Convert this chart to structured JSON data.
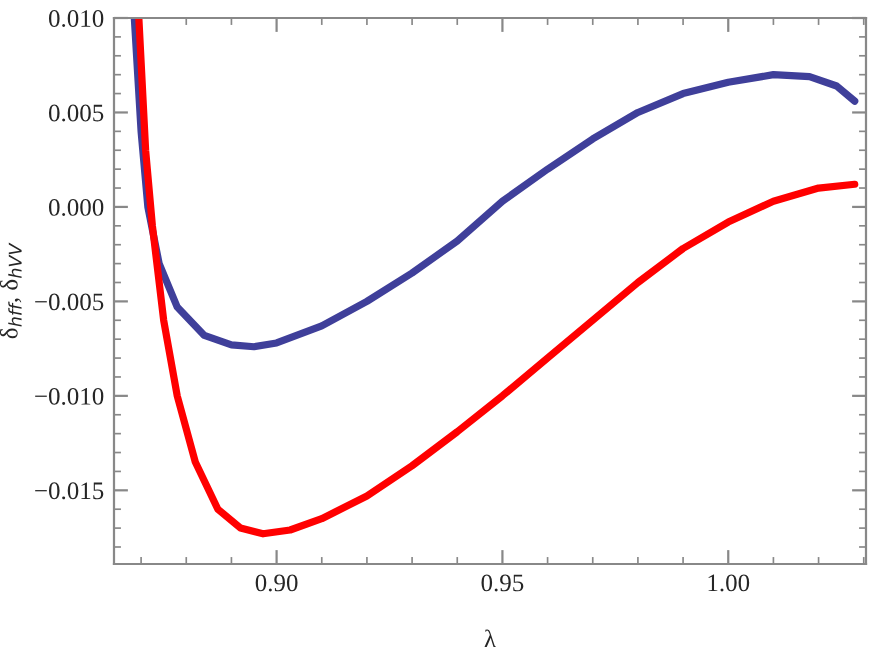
{
  "chart_data": {
    "type": "line",
    "xlabel": "λ",
    "ylabel": "δ$_{hff}$, δ$_{hVV}$",
    "xlim": [
      0.864,
      1.0305
    ],
    "ylim": [
      -0.0189,
      0.01
    ],
    "xticks": [
      {
        "value": 0.9,
        "label": "0.90"
      },
      {
        "value": 0.95,
        "label": "0.95"
      },
      {
        "value": 1.0,
        "label": "1.00"
      }
    ],
    "yticks": [
      {
        "value": -0.015,
        "label": "−0.015"
      },
      {
        "value": -0.01,
        "label": "−0.010"
      },
      {
        "value": -0.005,
        "label": "−0.005"
      },
      {
        "value": 0.0,
        "label": "0.000"
      },
      {
        "value": 0.005,
        "label": "0.005"
      },
      {
        "value": 0.01,
        "label": "0.010"
      }
    ],
    "grid": false,
    "line_style": "solid",
    "marker": "none",
    "series": [
      {
        "color": "#3f3f9a",
        "x": [
          0.8685,
          0.87,
          0.8715,
          0.874,
          0.878,
          0.884,
          0.89,
          0.895,
          0.9,
          0.91,
          0.92,
          0.93,
          0.94,
          0.95,
          0.96,
          0.97,
          0.98,
          0.99,
          1.0,
          1.01,
          1.018,
          1.024,
          1.028
        ],
        "values": [
          0.01,
          0.004,
          0.0,
          -0.003,
          -0.0053,
          -0.0068,
          -0.0073,
          -0.0074,
          -0.0072,
          -0.0063,
          -0.005,
          -0.0035,
          -0.0018,
          0.0003,
          0.002,
          0.0036,
          0.005,
          0.006,
          0.0066,
          0.007,
          0.0069,
          0.0064,
          0.0056
        ]
      },
      {
        "color": "#ff0000",
        "x": [
          0.8695,
          0.871,
          0.8725,
          0.875,
          0.878,
          0.882,
          0.887,
          0.892,
          0.897,
          0.903,
          0.91,
          0.92,
          0.93,
          0.94,
          0.95,
          0.96,
          0.97,
          0.98,
          0.99,
          1.0,
          1.01,
          1.02,
          1.028
        ],
        "values": [
          0.01,
          0.003,
          -0.001,
          -0.006,
          -0.01,
          -0.0135,
          -0.016,
          -0.017,
          -0.0173,
          -0.0171,
          -0.0165,
          -0.0153,
          -0.0137,
          -0.0119,
          -0.01,
          -0.008,
          -0.006,
          -0.004,
          -0.0022,
          -0.0008,
          0.0003,
          0.001,
          0.0012
        ]
      }
    ]
  }
}
